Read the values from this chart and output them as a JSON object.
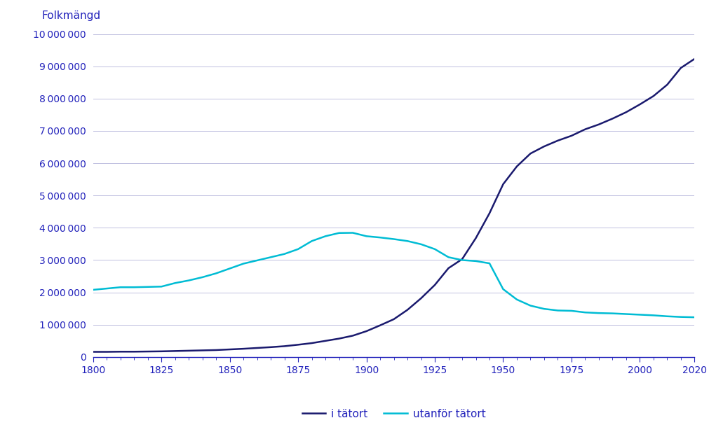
{
  "ylabel": "Folkmängd",
  "background_color": "#ffffff",
  "plot_background": "#ffffff",
  "grid_color": "#c0c0e0",
  "urban_color": "#1a1a6e",
  "rural_color": "#00bcd4",
  "urban_label": "i tätort",
  "rural_label": "utanför tätort",
  "urban_data": {
    "years": [
      1800,
      1805,
      1810,
      1815,
      1820,
      1825,
      1830,
      1835,
      1840,
      1845,
      1850,
      1855,
      1860,
      1865,
      1870,
      1875,
      1880,
      1885,
      1890,
      1895,
      1900,
      1905,
      1910,
      1915,
      1920,
      1925,
      1930,
      1935,
      1940,
      1945,
      1950,
      1955,
      1960,
      1965,
      1970,
      1975,
      1980,
      1985,
      1990,
      1995,
      2000,
      2005,
      2010,
      2015,
      2020
    ],
    "values": [
      160000,
      160000,
      165000,
      165000,
      170000,
      175000,
      185000,
      195000,
      205000,
      215000,
      235000,
      255000,
      280000,
      305000,
      335000,
      380000,
      430000,
      500000,
      570000,
      660000,
      800000,
      980000,
      1170000,
      1460000,
      1820000,
      2230000,
      2750000,
      3030000,
      3680000,
      4450000,
      5350000,
      5900000,
      6300000,
      6520000,
      6700000,
      6850000,
      7050000,
      7200000,
      7380000,
      7580000,
      7820000,
      8080000,
      8430000,
      8950000,
      9230000
    ]
  },
  "rural_data": {
    "years": [
      1800,
      1805,
      1810,
      1815,
      1820,
      1825,
      1830,
      1835,
      1840,
      1845,
      1850,
      1855,
      1860,
      1865,
      1870,
      1875,
      1880,
      1885,
      1890,
      1895,
      1900,
      1905,
      1910,
      1915,
      1920,
      1925,
      1930,
      1935,
      1940,
      1945,
      1950,
      1955,
      1960,
      1965,
      1970,
      1975,
      1980,
      1985,
      1990,
      1995,
      2000,
      2005,
      2010,
      2015,
      2020
    ],
    "values": [
      2080000,
      2120000,
      2160000,
      2160000,
      2170000,
      2180000,
      2290000,
      2370000,
      2470000,
      2590000,
      2740000,
      2890000,
      2990000,
      3090000,
      3190000,
      3340000,
      3590000,
      3740000,
      3840000,
      3845000,
      3740000,
      3700000,
      3650000,
      3590000,
      3490000,
      3340000,
      3090000,
      3000000,
      2970000,
      2900000,
      2100000,
      1780000,
      1590000,
      1490000,
      1440000,
      1430000,
      1380000,
      1360000,
      1350000,
      1330000,
      1310000,
      1290000,
      1260000,
      1240000,
      1230000
    ]
  },
  "xlim": [
    1800,
    2020
  ],
  "ylim": [
    0,
    10000000
  ],
  "xticks_major": [
    1800,
    1825,
    1850,
    1875,
    1900,
    1925,
    1950,
    1975,
    2000,
    2020
  ],
  "yticks": [
    0,
    1000000,
    2000000,
    3000000,
    4000000,
    5000000,
    6000000,
    7000000,
    8000000,
    9000000,
    10000000
  ],
  "label_color": "#2222bb",
  "spine_color": "#2222bb"
}
